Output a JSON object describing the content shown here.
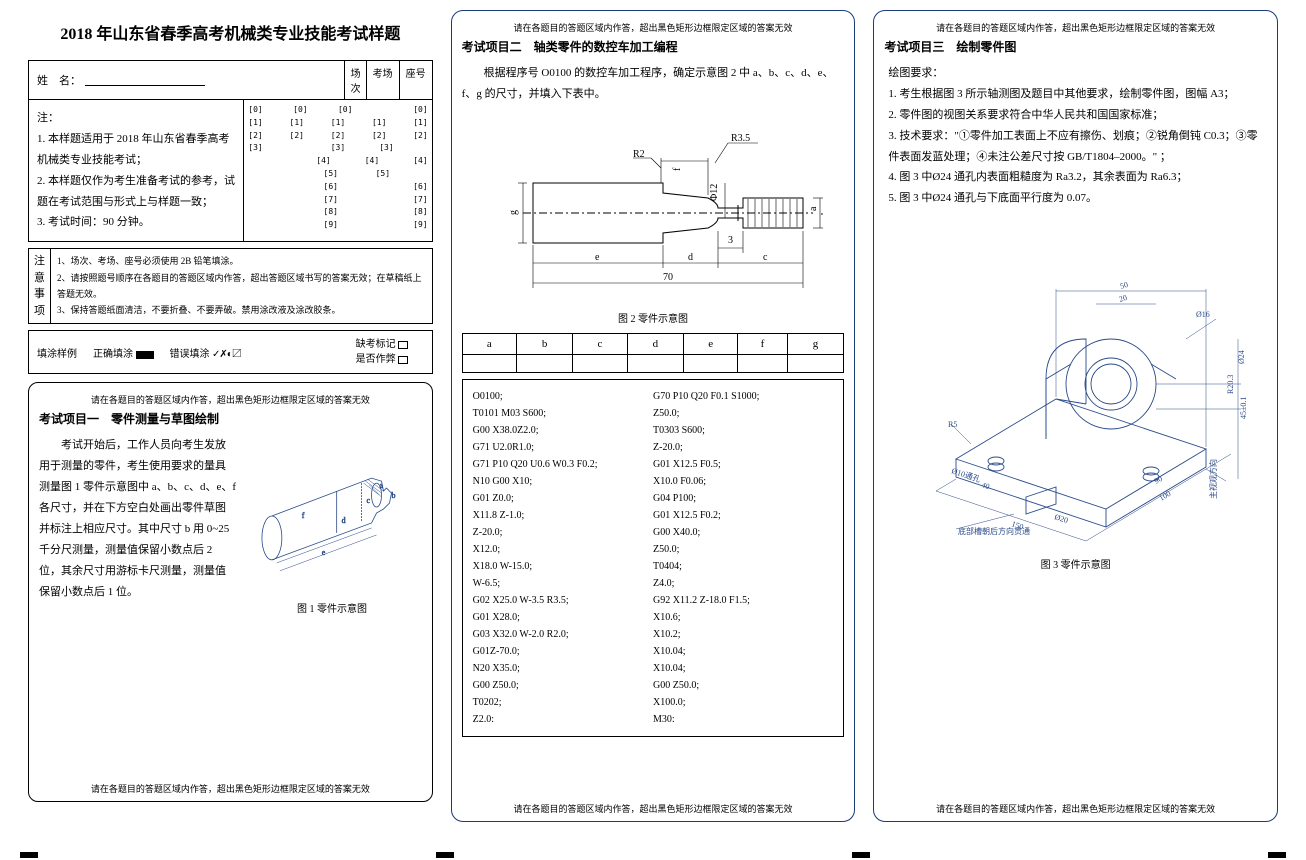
{
  "col1": {
    "main_title": "2018 年山东省春季高考机械类专业技能考试样题",
    "name_label": "姓　名：",
    "session_labels": {
      "session": "场次",
      "room": "考场",
      "seat": "座号"
    },
    "instructions_header": "注：",
    "instructions": [
      "1. 本样题适用于 2018 年山东省春季高考机械类专业技能考试；",
      "2. 本样题仅作为考生准备考试的参考，试题在考试范围与形式上与样题一致；",
      "3. 考试时间：90 分钟。"
    ],
    "bubble_rows": [
      [
        "[0]",
        "[0]",
        "[0]",
        " ",
        "[0]"
      ],
      [
        "[1]",
        "[1]",
        "[1]",
        "[1]",
        "[1]"
      ],
      [
        "[2]",
        "[2]",
        "[2]",
        "[2]",
        "[2]"
      ],
      [
        "[3]",
        " ",
        "[3]",
        "[3]",
        " "
      ],
      [
        " ",
        " ",
        "[4]",
        "[4]",
        "[4]"
      ],
      [
        " ",
        " ",
        "[5]",
        "[5]",
        " "
      ],
      [
        " ",
        " ",
        "[6]",
        " ",
        "[6]"
      ],
      [
        " ",
        " ",
        "[7]",
        " ",
        "[7]"
      ],
      [
        " ",
        " ",
        "[8]",
        " ",
        "[8]"
      ],
      [
        " ",
        " ",
        "[9]",
        " ",
        "[9]"
      ]
    ],
    "notes_label": [
      "注",
      "意",
      "事",
      "项"
    ],
    "notes": [
      "1、场次、考场、座号必须使用 2B 铅笔填涂。",
      "2、请按照题号顺序在各题目的答题区域内作答，超出答题区域书写的答案无效；在草稿纸上答题无效。",
      "3、保持答题纸面清洁，不要折叠、不要弄破。禁用涂改液及涂改胶条。"
    ],
    "fill": {
      "label": "填涂样例",
      "correct": "正确填涂",
      "wrong": "错误填涂",
      "wrong_marks": "✓✗◐〼",
      "lack_mark": "缺考标记",
      "cheat_mark": "是否作弊"
    },
    "boundary_note": "请在各题目的答题区域内作答，超出黑色矩形边框限定区域的答案无效",
    "section1": {
      "title": "考试项目一　零件测量与草图绘制",
      "body": "考试开始后，工作人员向考生发放用于测量的零件，考生使用要求的量具测量图 1 零件示意图中 a、b、c、d、e、f 各尺寸，并在下方空白处画出零件草图并标注上相应尺寸。其中尺寸 b 用 0~25 千分尺测量，测量值保留小数点后 2 位，其余尺寸用游标卡尺测量，测量值保留小数点后 1 位。",
      "fig_caption": "图 1 零件示意图"
    }
  },
  "col2": {
    "boundary_note": "请在各题目的答题区域内作答，超出黑色矩形边框限定区域的答案无效",
    "section2": {
      "title": "考试项目二　轴类零件的数控车加工编程",
      "body": "根据程序号 O0100 的数控车加工程序，确定示意图 2 中 a、b、c、d、e、f、g 的尺寸，并填入下表中。",
      "fig_caption": "图 2 零件示意图",
      "dim_labels": {
        "r35": "R3.5",
        "r2": "R2",
        "d12": "Φ12",
        "n3": "3",
        "n70": "70"
      },
      "table_headers": [
        "a",
        "b",
        "c",
        "d",
        "e",
        "f",
        "g"
      ],
      "code_left": [
        "O0100;",
        "T0101 M03 S600;",
        "G00 X38.0Z2.0;",
        "G71 U2.0R1.0;",
        "G71 P10 Q20 U0.6 W0.3 F0.2;",
        "N10 G00 X10;",
        "G01 Z0.0;",
        "X11.8 Z-1.0;",
        "Z-20.0;",
        "X12.0;",
        "X18.0 W-15.0;",
        "W-6.5;",
        "G02 X25.0 W-3.5 R3.5;",
        "G01 X28.0;",
        "G03 X32.0 W-2.0 R2.0;",
        "G01Z-70.0;",
        "N20 X35.0;",
        "G00 Z50.0;",
        "T0202;",
        "Z2.0:"
      ],
      "code_right": [
        "G70 P10 Q20 F0.1 S1000;",
        "Z50.0;",
        "T0303 S600;",
        "Z-20.0;",
        "G01 X12.5 F0.5;",
        "X10.0 F0.06;",
        "G04 P100;",
        "G01 X12.5 F0.2;",
        "G00 X40.0;",
        "Z50.0;",
        "T0404;",
        "Z4.0;",
        "G92 X11.2 Z-18.0 F1.5;",
        "X10.6;",
        "X10.2;",
        "X10.04;",
        "X10.04;",
        "G00 Z50.0;",
        "X100.0;",
        "M30:"
      ]
    }
  },
  "col3": {
    "boundary_note": "请在各题目的答题区域内作答，超出黑色矩形边框限定区域的答案无效",
    "section3": {
      "title": "考试项目三　绘制零件图",
      "req_header": "绘图要求：",
      "reqs": [
        "1. 考生根据图 3 所示轴测图及题目中其他要求，绘制零件图，图幅 A3；",
        "2. 零件图的视图关系要求符合中华人民共和国国家标准；",
        "3. 技术要求：\"①零件加工表面上不应有擦伤、划痕；②锐角倒钝 C0.3；③零件表面发蓝处理；④未注公差尺寸按 GB/T1804–2000。\" ；",
        "4. 图 3 中Ø24 通孔内表面粗糙度为 Ra3.2，其余表面为 Ra6.3；",
        "5. 图 3 中Ø24 通孔与下底面平行度为 0.07。"
      ],
      "fig_caption": "图 3 零件示意图",
      "labels": {
        "r5": "R5",
        "slot": "底部槽朝后方向贯通",
        "plane": "主视观方向"
      }
    }
  }
}
